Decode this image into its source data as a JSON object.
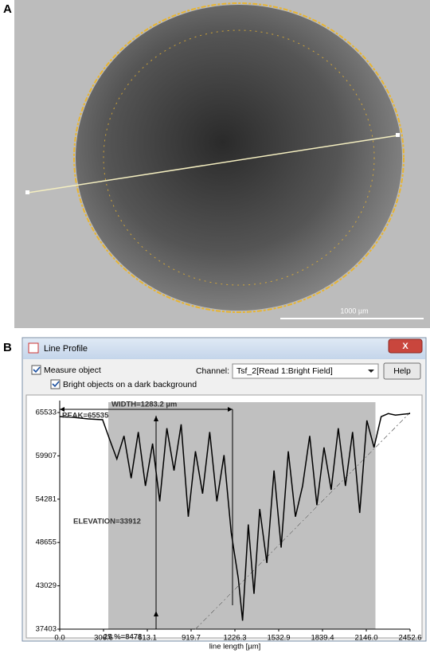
{
  "panels": {
    "a": {
      "label": "A",
      "scale_bar": "1000 µm"
    },
    "b": {
      "label": "B"
    }
  },
  "window": {
    "title": "Line Profile",
    "measure_object": "Measure object",
    "bright_objects": "Bright objects on a dark background",
    "channel_label": "Channel:",
    "channel_value": "Tsf_2[Read 1:Bright Field]",
    "help": "Help"
  },
  "chart_data": {
    "type": "line",
    "color": "#000000",
    "x": [
      0,
      100,
      200,
      300,
      350,
      400,
      450,
      500,
      550,
      600,
      650,
      700,
      750,
      800,
      850,
      900,
      950,
      1000,
      1050,
      1100,
      1150,
      1200,
      1250,
      1280,
      1320,
      1360,
      1400,
      1450,
      1500,
      1550,
      1600,
      1650,
      1700,
      1750,
      1800,
      1850,
      1900,
      1950,
      2000,
      2050,
      2100,
      2150,
      2200,
      2250,
      2300,
      2350,
      2400,
      2452.6
    ],
    "values": [
      65000,
      64900,
      64700,
      64600,
      62000,
      59500,
      62500,
      57000,
      63000,
      56000,
      61500,
      54000,
      63500,
      58000,
      64000,
      52000,
      60500,
      55000,
      63000,
      54000,
      60000,
      50000,
      44000,
      38500,
      51000,
      42000,
      53000,
      46000,
      58000,
      48000,
      60500,
      52000,
      56000,
      62500,
      53500,
      61000,
      55500,
      63500,
      56000,
      63000,
      52500,
      64500,
      61000,
      65000,
      65400,
      65200,
      65300,
      65400
    ],
    "shaded_range": [
      340,
      2210
    ],
    "dashed_line": {
      "x": [
        950,
        2452.6
      ],
      "y": [
        37403,
        65533
      ]
    },
    "xlim": [
      0,
      2452.6
    ],
    "ylim": [
      37403,
      65533
    ],
    "xticks": [
      {
        "value": 0,
        "label": "0.0"
      },
      306.6,
      613.1,
      919.7,
      1226.3,
      1532.9,
      1839.4,
      {
        "value": 2146,
        "label": "2146.0"
      },
      2452.6
    ],
    "yticks": [
      37403,
      43029,
      48655,
      54281,
      59907,
      65533
    ],
    "xlabel": "line length [µm]",
    "annotations": [
      "PEAK=65535",
      "WIDTH=1283.2 µm",
      "ELEVATION=33912",
      "25 %=8478"
    ]
  }
}
